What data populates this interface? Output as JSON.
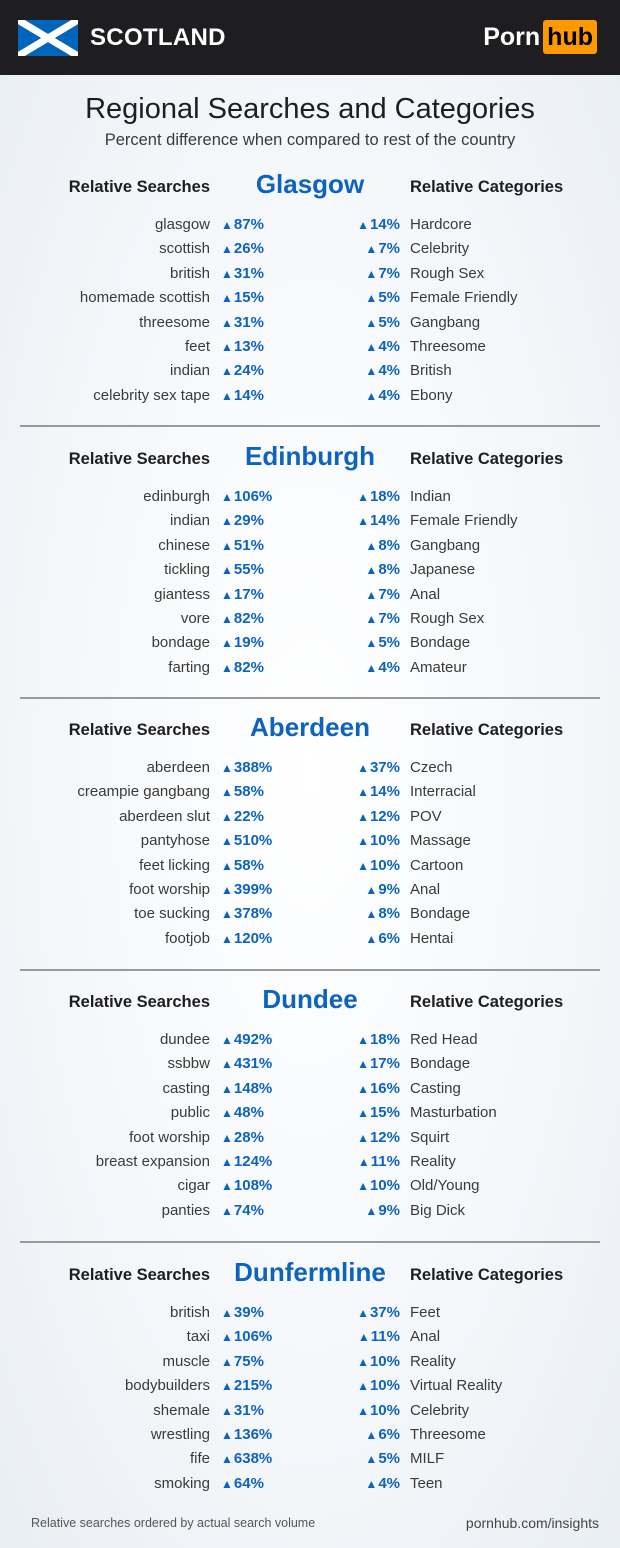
{
  "header": {
    "country": "SCOTLAND",
    "logo": {
      "part1": "Porn",
      "part2": "hub"
    },
    "flag_icon": "scotland-flag-icon"
  },
  "title": "Regional Searches and Categories",
  "subtitle": "Percent difference when compared to rest of the country",
  "colors": {
    "accent": "#0d63be",
    "header_bg": "#1e1e21",
    "logo_orange": "#ff9900"
  },
  "trend_icon": "▲",
  "sections": [
    {
      "city": "Glasgow",
      "searches_label": "Relative Searches",
      "categories_label": "Relative Categories",
      "searches": [
        [
          "glasgow",
          "87%"
        ],
        [
          "scottish",
          "26%"
        ],
        [
          "british",
          "31%"
        ],
        [
          "homemade scottish",
          "15%"
        ],
        [
          "threesome",
          "31%"
        ],
        [
          "feet",
          "13%"
        ],
        [
          "indian",
          "24%"
        ],
        [
          "celebrity sex tape",
          "14%"
        ]
      ],
      "categories": [
        [
          "14%",
          "Hardcore"
        ],
        [
          "7%",
          "Celebrity"
        ],
        [
          "7%",
          "Rough Sex"
        ],
        [
          "5%",
          "Female Friendly"
        ],
        [
          "5%",
          "Gangbang"
        ],
        [
          "4%",
          "Threesome"
        ],
        [
          "4%",
          "British"
        ],
        [
          "4%",
          "Ebony"
        ]
      ]
    },
    {
      "city": "Edinburgh",
      "searches_label": "Relative Searches",
      "categories_label": "Relative Categories",
      "searches": [
        [
          "edinburgh",
          "106%"
        ],
        [
          "indian",
          "29%"
        ],
        [
          "chinese",
          "51%"
        ],
        [
          "tickling",
          "55%"
        ],
        [
          "giantess",
          "17%"
        ],
        [
          "vore",
          "82%"
        ],
        [
          "bondage",
          "19%"
        ],
        [
          "farting",
          "82%"
        ]
      ],
      "categories": [
        [
          "18%",
          "Indian"
        ],
        [
          "14%",
          "Female Friendly"
        ],
        [
          "8%",
          "Gangbang"
        ],
        [
          "8%",
          "Japanese"
        ],
        [
          "7%",
          "Anal"
        ],
        [
          "7%",
          "Rough Sex"
        ],
        [
          "5%",
          "Bondage"
        ],
        [
          "4%",
          "Amateur"
        ]
      ]
    },
    {
      "city": "Aberdeen",
      "searches_label": "Relative Searches",
      "categories_label": "Relative Categories",
      "searches": [
        [
          "aberdeen",
          "388%"
        ],
        [
          "creampie gangbang",
          "58%"
        ],
        [
          "aberdeen slut",
          "22%"
        ],
        [
          "pantyhose",
          "510%"
        ],
        [
          "feet licking",
          "58%"
        ],
        [
          "foot worship",
          "399%"
        ],
        [
          "toe sucking",
          "378%"
        ],
        [
          "footjob",
          "120%"
        ]
      ],
      "categories": [
        [
          "37%",
          "Czech"
        ],
        [
          "14%",
          "Interracial"
        ],
        [
          "12%",
          "POV"
        ],
        [
          "10%",
          "Massage"
        ],
        [
          "10%",
          "Cartoon"
        ],
        [
          "9%",
          "Anal"
        ],
        [
          "8%",
          "Bondage"
        ],
        [
          "6%",
          "Hentai"
        ]
      ]
    },
    {
      "city": "Dundee",
      "searches_label": "Relative Searches",
      "categories_label": "Relative Categories",
      "searches": [
        [
          "dundee",
          "492%"
        ],
        [
          "ssbbw",
          "431%"
        ],
        [
          "casting",
          "148%"
        ],
        [
          "public",
          "48%"
        ],
        [
          "foot worship",
          "28%"
        ],
        [
          "breast expansion",
          "124%"
        ],
        [
          "cigar",
          "108%"
        ],
        [
          "panties",
          "74%"
        ]
      ],
      "categories": [
        [
          "18%",
          "Red Head"
        ],
        [
          "17%",
          "Bondage"
        ],
        [
          "16%",
          "Casting"
        ],
        [
          "15%",
          "Masturbation"
        ],
        [
          "12%",
          "Squirt"
        ],
        [
          "11%",
          "Reality"
        ],
        [
          "10%",
          "Old/Young"
        ],
        [
          "9%",
          "Big Dick"
        ]
      ]
    },
    {
      "city": "Dunfermline",
      "searches_label": "Relative Searches",
      "categories_label": "Relative Categories",
      "searches": [
        [
          "british",
          "39%"
        ],
        [
          "taxi",
          "106%"
        ],
        [
          "muscle",
          "75%"
        ],
        [
          "bodybuilders",
          "215%"
        ],
        [
          "shemale",
          "31%"
        ],
        [
          "wrestling",
          "136%"
        ],
        [
          "fife",
          "638%"
        ],
        [
          "smoking",
          "64%"
        ]
      ],
      "categories": [
        [
          "37%",
          "Feet"
        ],
        [
          "11%",
          "Anal"
        ],
        [
          "10%",
          "Reality"
        ],
        [
          "10%",
          "Virtual Reality"
        ],
        [
          "10%",
          "Celebrity"
        ],
        [
          "6%",
          "Threesome"
        ],
        [
          "5%",
          "MILF"
        ],
        [
          "4%",
          "Teen"
        ]
      ]
    }
  ],
  "footer": {
    "note": "Relative searches ordered by actual search volume",
    "source": "pornhub.com/insights"
  }
}
